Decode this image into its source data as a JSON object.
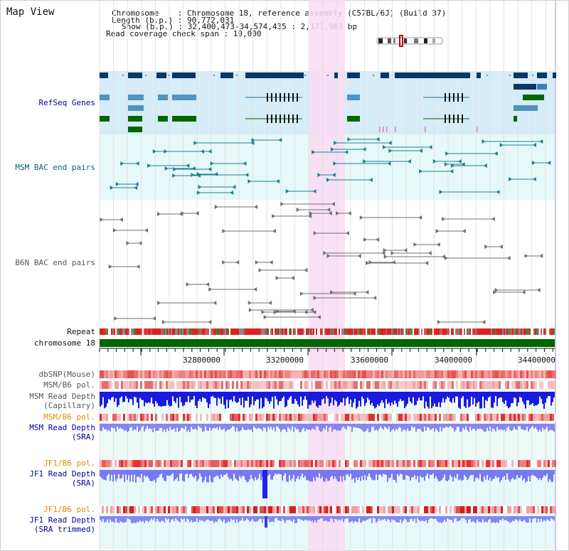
{
  "view_title": "Map View",
  "header": {
    "chromosome": "Chromosome    : Chromosome 18, reference assembly (C57BL/6J) (Build 37)",
    "length": "Length (b.p.) : 90,772,031",
    "show": "Show (b.p.) : 32,400,473-34,574,435 : 2,173,963 bp",
    "coverage": "Read coverage check span : 10,000"
  },
  "track_labels": {
    "refseq": "RefSeq Genes",
    "msm_bac": "MSM BAC end pairs",
    "b6n_bac": "B6N BAC end pairs",
    "repeat": "Repeat",
    "chromosome": "chromosome 18",
    "dbsnp": "dbSNP(Mouse)",
    "msm_b6_pol_1": "MSM/B6 pol.",
    "msm_read_depth_cap": "MSM Read Depth",
    "msm_read_depth_cap_sub": "(Capillary)",
    "msm_b6_pol_2": "MSM/B6 pol.",
    "msm_read_depth_sra": "MSM Read Depth",
    "msm_read_depth_sra_sub": "(SRA)",
    "jf1_b6_pol_1": "JF1/B6 pol.",
    "jf1_read_depth_sra": "JF1 Read Depth",
    "jf1_read_depth_sra_sub": "(SRA)",
    "jf1_b6_pol_2": "JF1/B6 pol.",
    "jf1_read_depth_trim": "JF1 Read Depth",
    "jf1_read_depth_trim_sub": "(SRA trimmed)"
  },
  "axis": {
    "ticks": [
      "32800000",
      "33200000",
      "33600000",
      "34000000",
      "34400000"
    ]
  },
  "colors": {
    "refseq_band": "#d6ecf8",
    "msm_band": "#e6f8f8",
    "highlight": "#f9dcf3",
    "chromosome_bar": "#006600",
    "label_blue": "#000099",
    "label_teal": "#006666",
    "label_orange": "#e08a00",
    "label_gray": "#555555"
  }
}
